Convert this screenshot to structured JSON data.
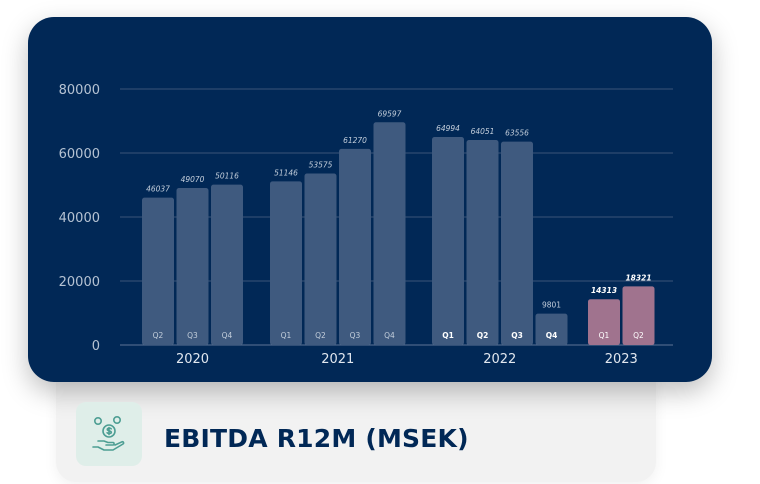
{
  "chart_data": {
    "type": "bar",
    "title": "EBITDA R12M (MSEK)",
    "ylim": [
      0,
      80000
    ],
    "yticks": [
      0,
      20000,
      40000,
      60000,
      80000
    ],
    "grid": true,
    "groups": [
      {
        "label": "2020",
        "bars": [
          {
            "quarter": "Q2",
            "value": 46037,
            "label": "46037"
          },
          {
            "quarter": "Q3",
            "value": 49070,
            "label": "49070"
          },
          {
            "quarter": "Q4",
            "value": 50116,
            "label": "50116"
          }
        ]
      },
      {
        "label": "2021",
        "bars": [
          {
            "quarter": "Q1",
            "value": 51146,
            "label": "51146"
          },
          {
            "quarter": "Q2",
            "value": 53575,
            "label": "53575"
          },
          {
            "quarter": "Q3",
            "value": 61270,
            "label": "61270"
          },
          {
            "quarter": "Q4",
            "value": 69597,
            "label": "69597"
          }
        ]
      },
      {
        "label": "2022",
        "bars": [
          {
            "quarter": "Q1",
            "value": 64994,
            "label": "64994"
          },
          {
            "quarter": "Q2",
            "value": 64051,
            "label": "64051"
          },
          {
            "quarter": "Q3",
            "value": 63556,
            "label": "63556"
          },
          {
            "quarter": "Q4",
            "value": 9801,
            "label": "9801"
          }
        ]
      },
      {
        "label": "2023",
        "bars": [
          {
            "quarter": "Q1",
            "value": 14313,
            "label": "14313"
          },
          {
            "quarter": "Q2",
            "value": 18321,
            "label": "18321"
          }
        ]
      }
    ],
    "colors": {
      "background": "#012856",
      "bar": "#3f5a7f",
      "bar_highlight": "#a0738e",
      "grid": "#3b5578",
      "axis_text": "#b6c3d3",
      "value_text": "#c3cedb",
      "quarter_text": "#c3cedb"
    }
  },
  "footer": {
    "label": "EBITDA R12M (MSEK)",
    "icon": "hand-coins-icon",
    "icon_color": "#4d9e93"
  }
}
